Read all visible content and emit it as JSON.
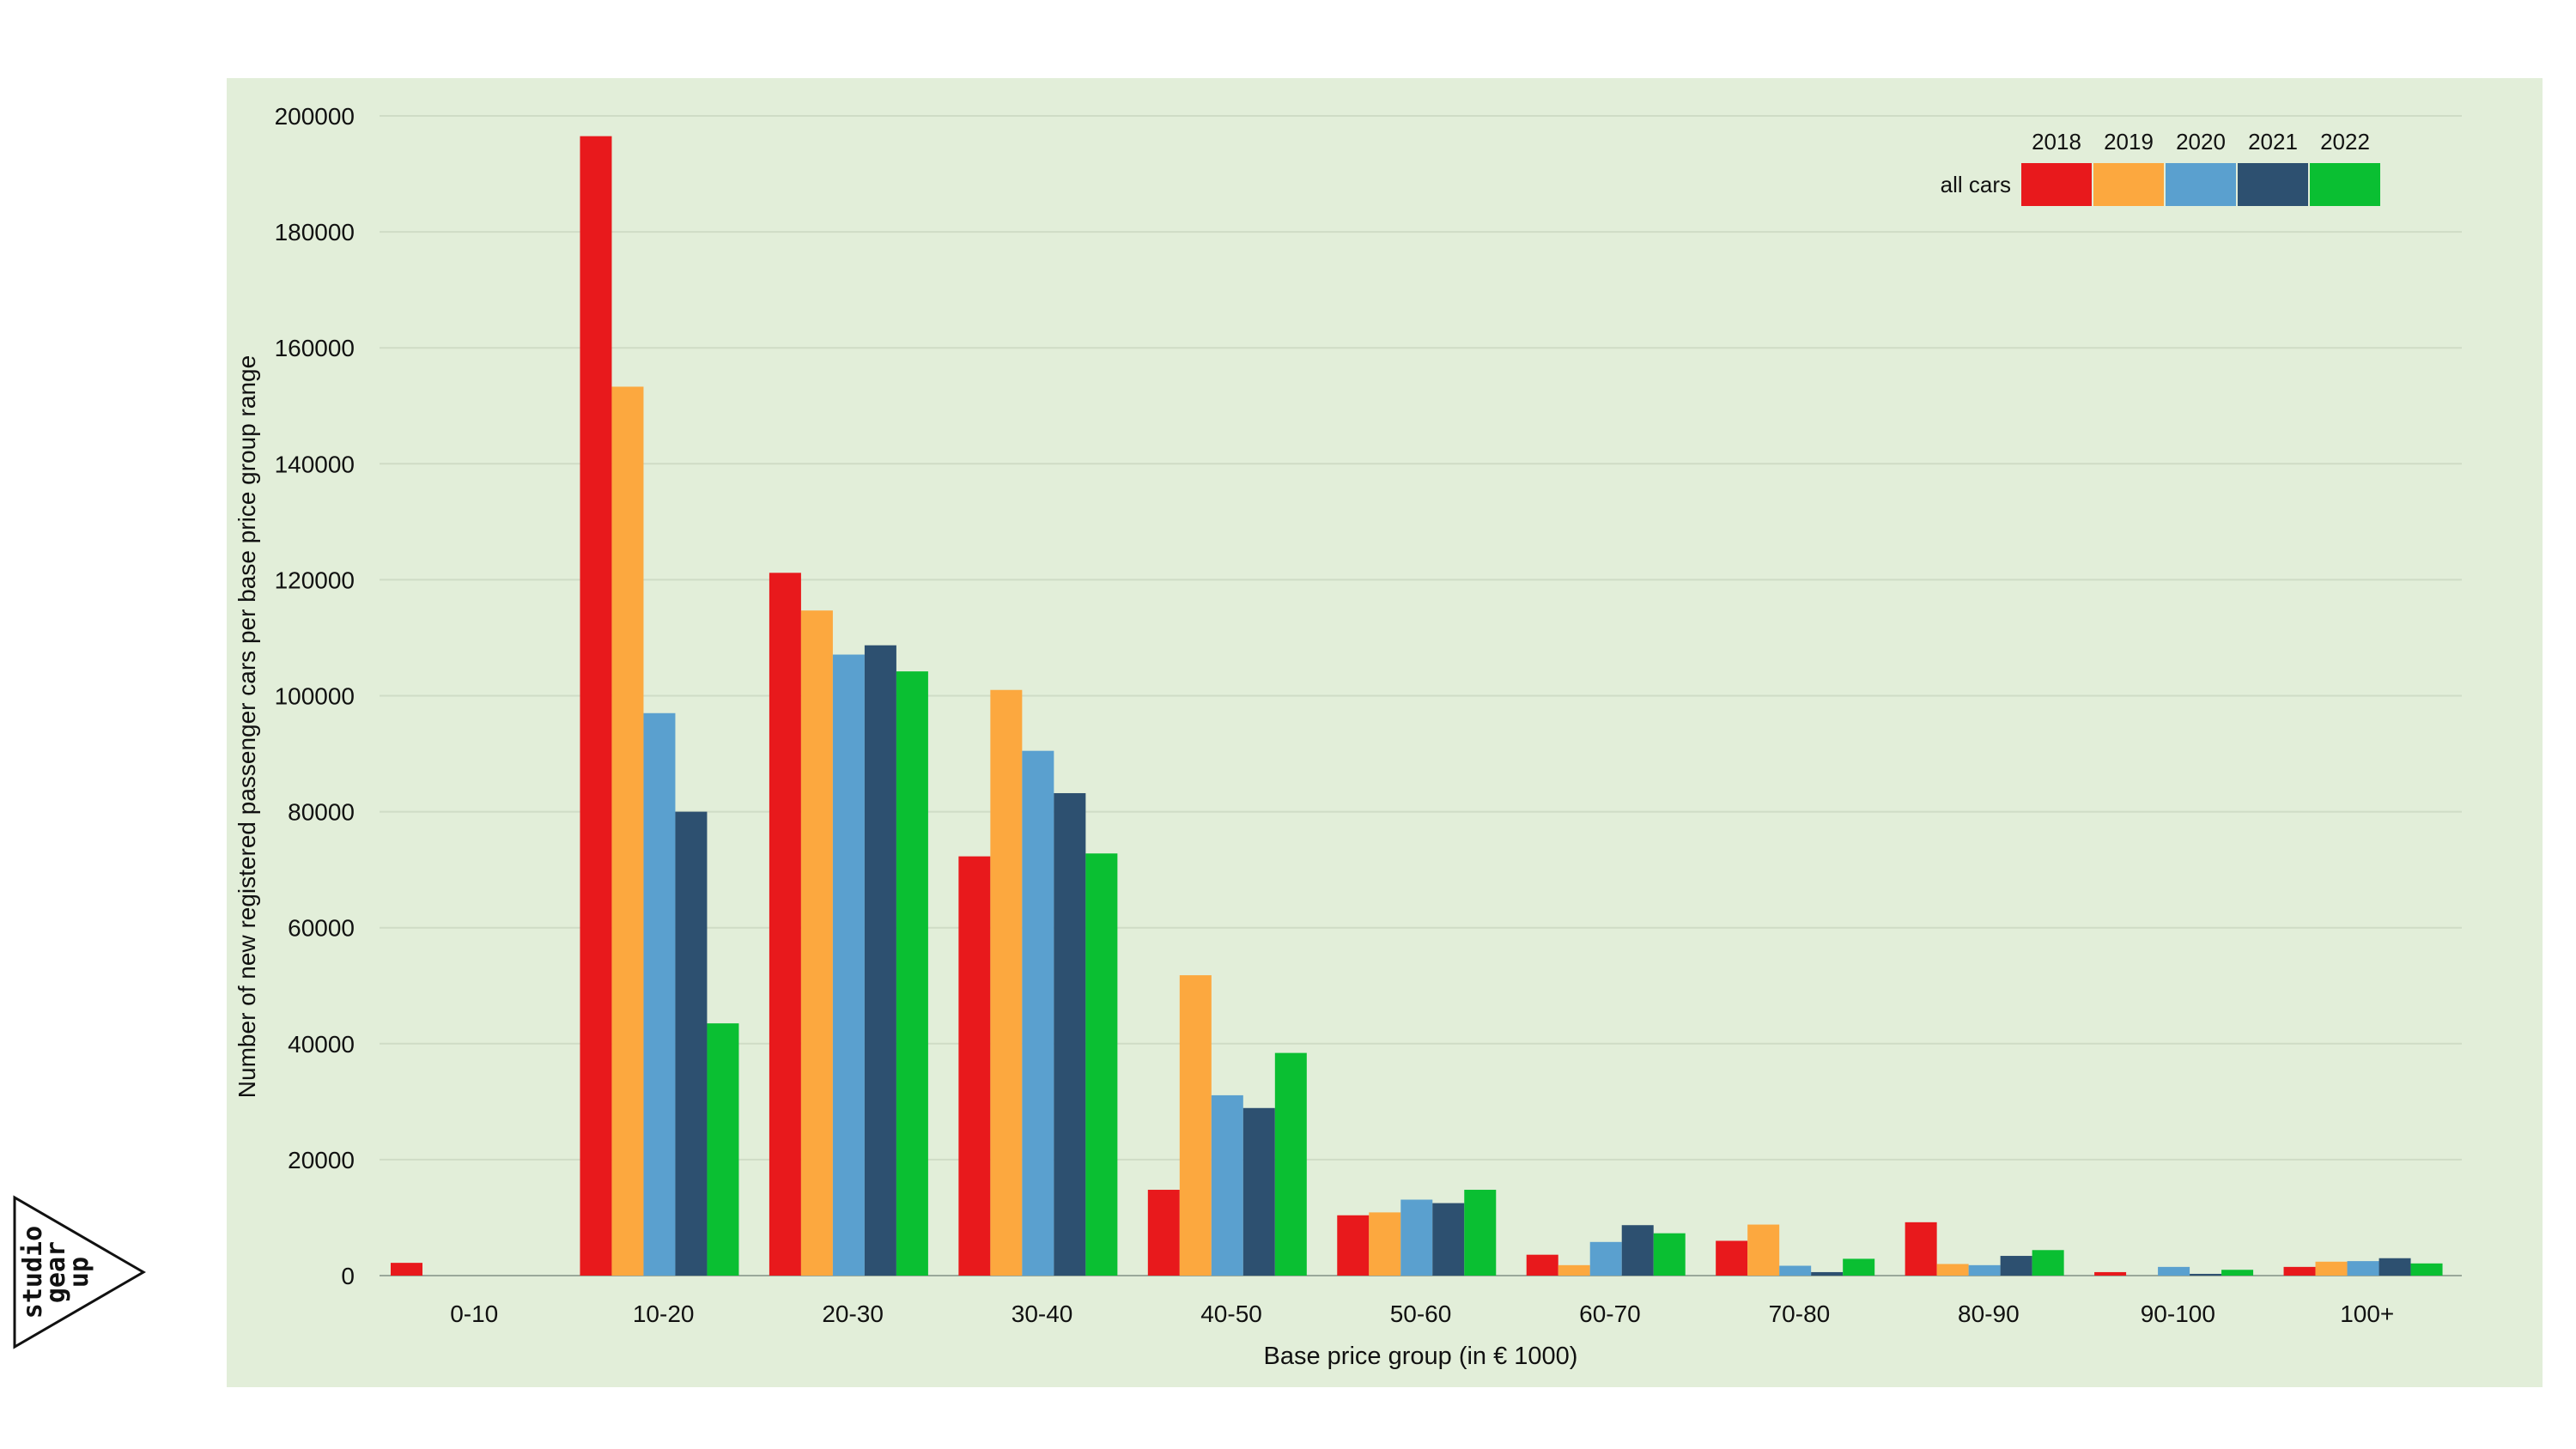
{
  "chart_data": {
    "type": "bar",
    "xlabel": "Base price group (in € 1000)",
    "ylabel": "Number of new registered passenger cars per base price group range",
    "ylim": [
      0,
      200000
    ],
    "yticks": [
      0,
      20000,
      40000,
      60000,
      80000,
      100000,
      120000,
      140000,
      160000,
      180000,
      200000
    ],
    "grid": true,
    "legend_position": "top-right",
    "legend_row_label": "all cars",
    "categories": [
      "0-10",
      "10-20",
      "20-30",
      "30-40",
      "40-50",
      "50-60",
      "60-70",
      "70-80",
      "80-90",
      "90-100",
      "100+"
    ],
    "series": [
      {
        "name": "2018",
        "color": "#e8191c",
        "values": [
          2200,
          196500,
          121200,
          72300,
          14800,
          10400,
          3600,
          6000,
          9200,
          600,
          1500
        ]
      },
      {
        "name": "2019",
        "color": "#fca83f",
        "values": [
          0,
          153300,
          114700,
          101000,
          51800,
          10900,
          1800,
          8800,
          2000,
          0,
          2400
        ]
      },
      {
        "name": "2020",
        "color": "#5aa0cf",
        "values": [
          0,
          97000,
          107100,
          90500,
          31100,
          13100,
          5800,
          1700,
          1800,
          1500,
          2500
        ]
      },
      {
        "name": "2021",
        "color": "#2d5070",
        "values": [
          0,
          80000,
          108700,
          83200,
          28900,
          12500,
          8700,
          600,
          3400,
          300,
          3000
        ]
      },
      {
        "name": "2022",
        "color": "#0abf32",
        "values": [
          0,
          43500,
          104200,
          72800,
          38400,
          14800,
          7300,
          2900,
          4400,
          1000,
          2100
        ]
      }
    ]
  },
  "logo": {
    "lines": [
      "studio",
      "gear",
      "up"
    ]
  }
}
